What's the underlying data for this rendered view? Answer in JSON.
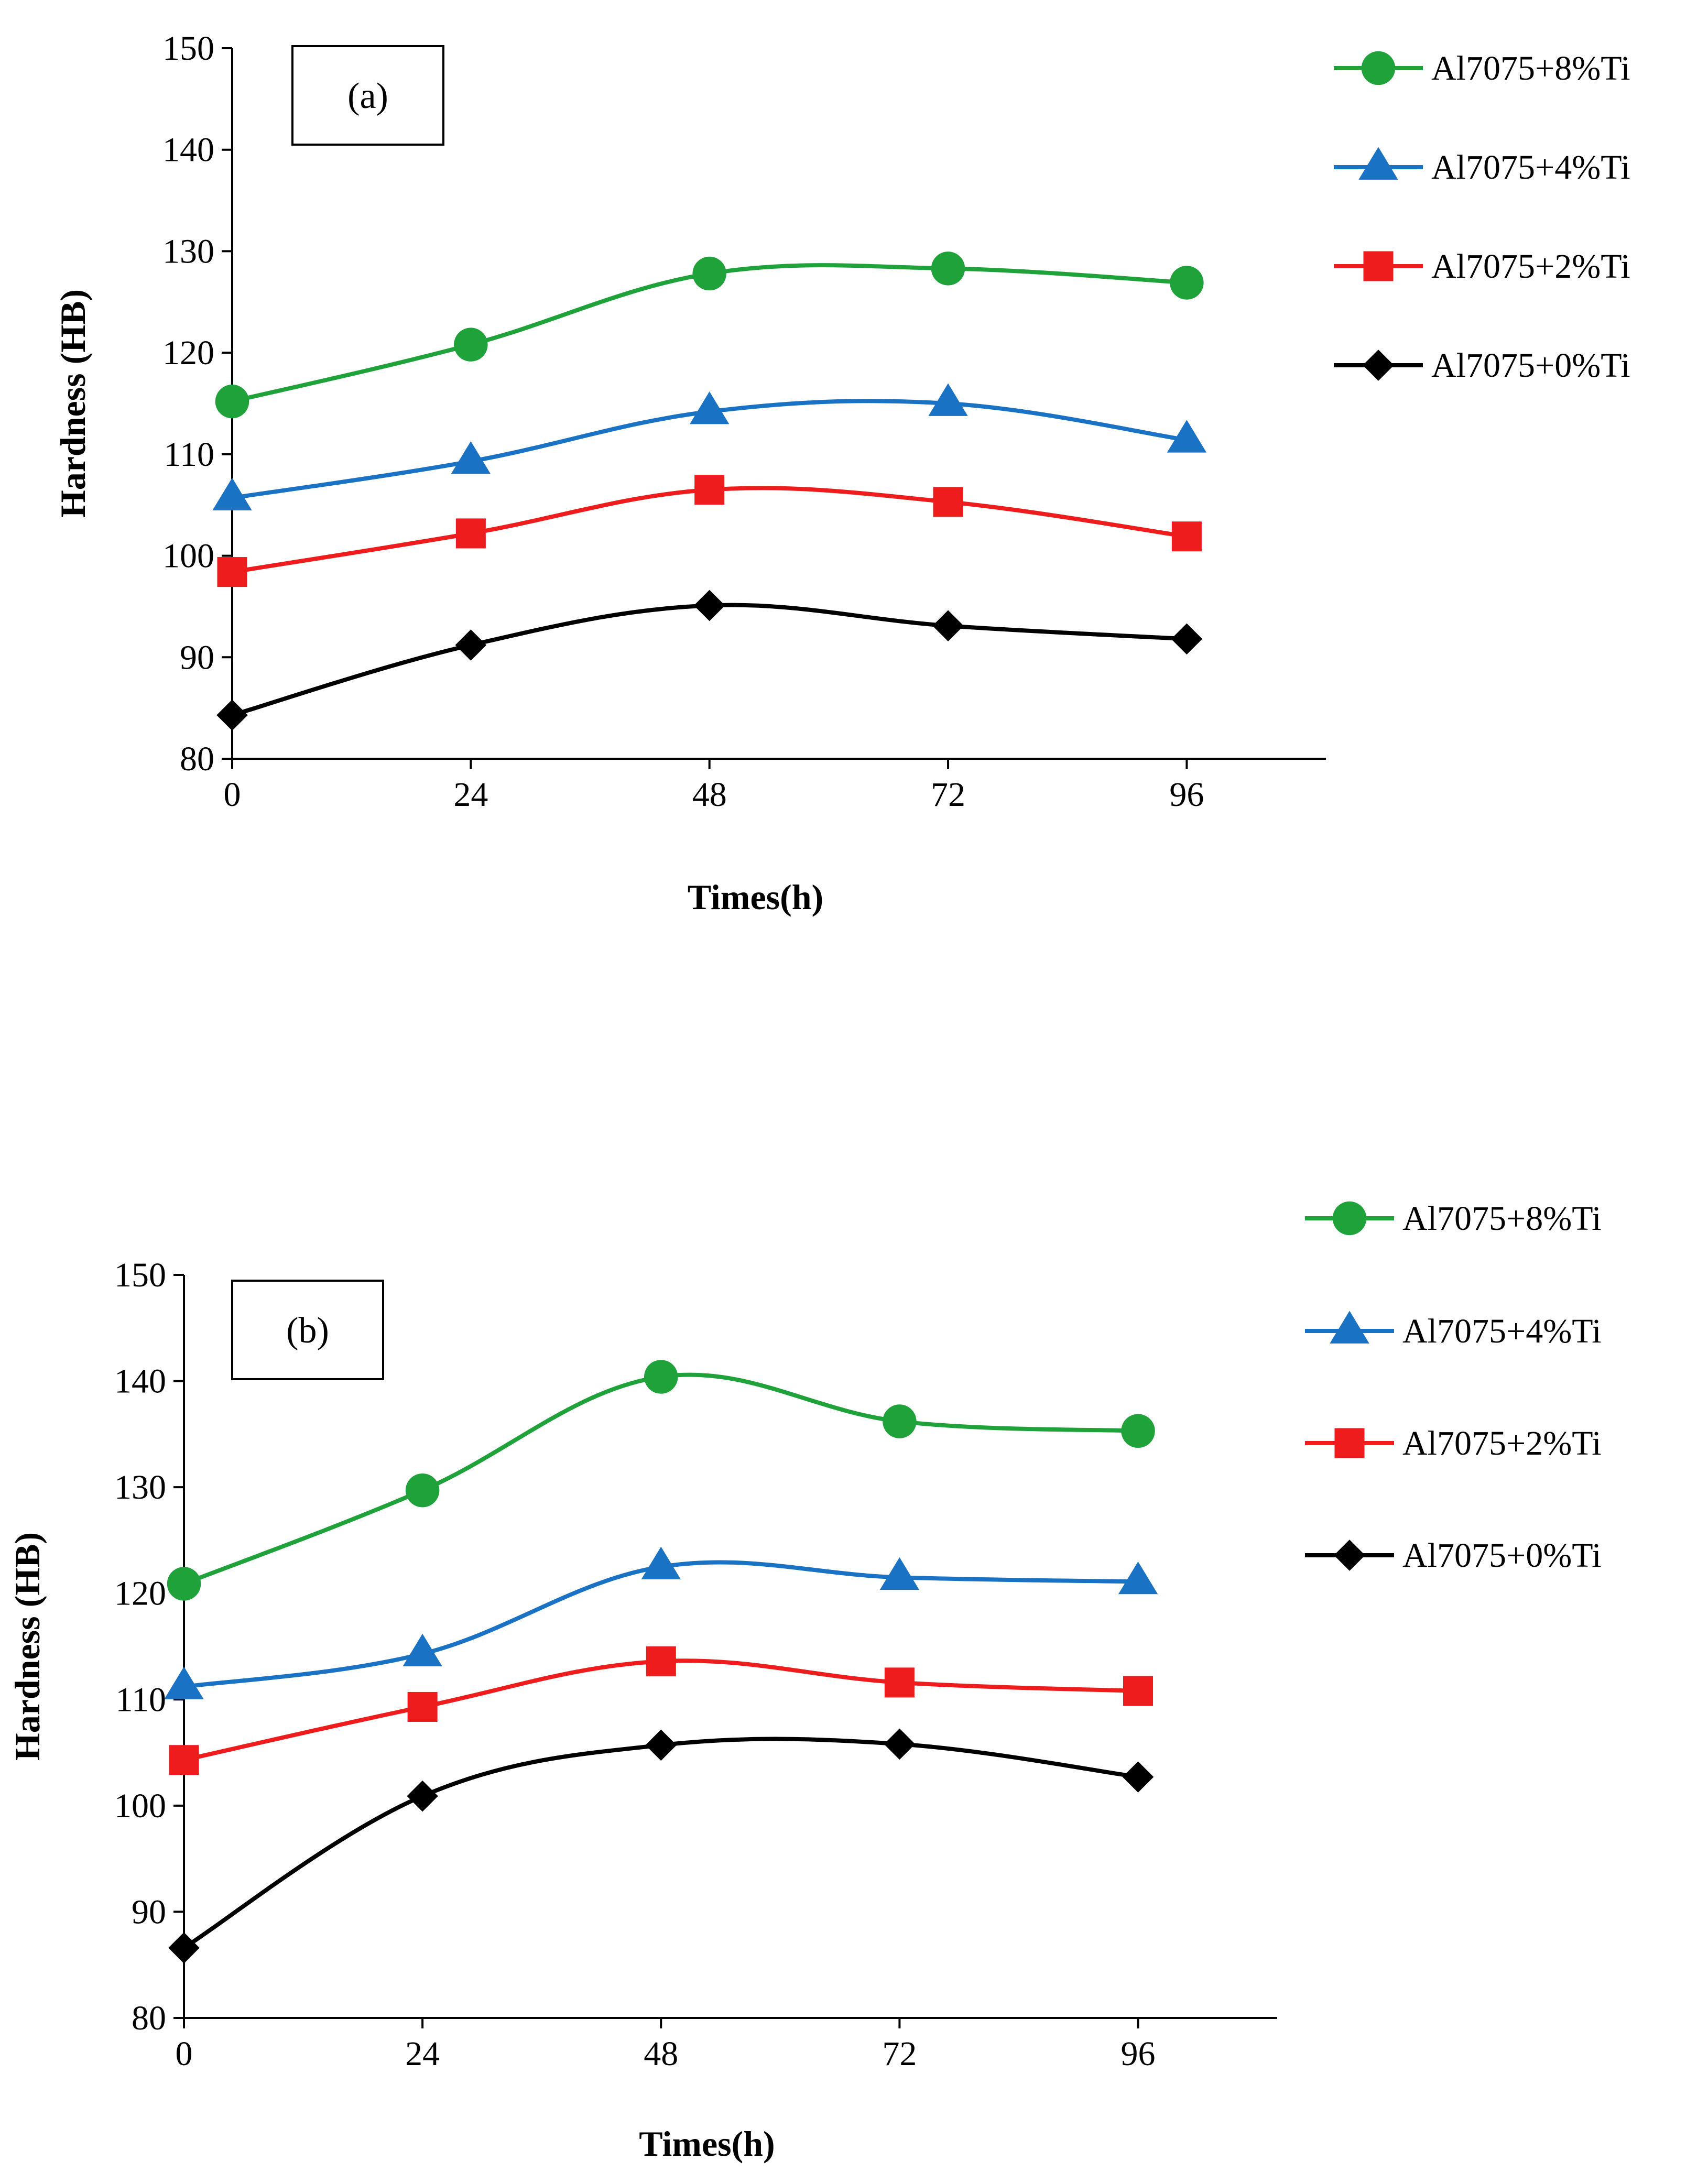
{
  "colors": {
    "series_8": "#1fa23a",
    "series_4": "#1a72c4",
    "series_2": "#ee1c1c",
    "series_0": "#000000"
  },
  "chart_data": [
    {
      "type": "line",
      "panel_label": "(a)",
      "title": "",
      "xlabel": "Times(h)",
      "ylabel": "Hardness (HB)",
      "x": [
        0,
        24,
        48,
        72,
        96
      ],
      "x_ticks": [
        "0",
        "24",
        "48",
        "72",
        "96"
      ],
      "y_ticks": [
        "80",
        "90",
        "100",
        "110",
        "120",
        "130",
        "140",
        "150"
      ],
      "xlim": [
        0,
        110
      ],
      "ylim": [
        80,
        150
      ],
      "grid": false,
      "legend_position": "right",
      "series": [
        {
          "name": "Al7075+8%Ti",
          "marker": "circle",
          "color": "#1fa23a",
          "values": [
            115.2,
            120.8,
            127.8,
            128.3,
            126.9
          ]
        },
        {
          "name": "Al7075+4%Ti",
          "marker": "triangle",
          "color": "#1a72c4",
          "values": [
            105.7,
            109.3,
            114.2,
            115.0,
            111.4
          ]
        },
        {
          "name": "Al7075+2%Ti",
          "marker": "square",
          "color": "#ee1c1c",
          "values": [
            98.4,
            102.2,
            106.5,
            105.3,
            101.9
          ]
        },
        {
          "name": "Al7075+0%Ti",
          "marker": "diamond",
          "color": "#000000",
          "values": [
            84.3,
            91.2,
            95.1,
            93.1,
            91.8
          ]
        }
      ]
    },
    {
      "type": "line",
      "panel_label": "(b)",
      "title": "",
      "xlabel": "Times(h)",
      "ylabel": "Hardness (HB)",
      "x": [
        0,
        24,
        48,
        72,
        96
      ],
      "x_ticks": [
        "0",
        "24",
        "48",
        "72",
        "96"
      ],
      "y_ticks": [
        "80",
        "90",
        "100",
        "110",
        "120",
        "130",
        "140",
        "150"
      ],
      "xlim": [
        0,
        110
      ],
      "ylim": [
        80,
        150
      ],
      "grid": false,
      "legend_position": "right",
      "series": [
        {
          "name": "Al7075+8%Ti",
          "marker": "circle",
          "color": "#1fa23a",
          "values": [
            120.9,
            129.7,
            140.4,
            136.2,
            135.3
          ]
        },
        {
          "name": "Al7075+4%Ti",
          "marker": "triangle",
          "color": "#1a72c4",
          "values": [
            111.2,
            114.3,
            122.5,
            121.5,
            121.1
          ]
        },
        {
          "name": "Al7075+2%Ti",
          "marker": "square",
          "color": "#ee1c1c",
          "values": [
            104.3,
            109.3,
            113.6,
            111.6,
            110.8
          ]
        },
        {
          "name": "Al7075+0%Ti",
          "marker": "diamond",
          "color": "#000000",
          "values": [
            86.6,
            100.9,
            105.7,
            105.8,
            102.7
          ]
        }
      ]
    }
  ]
}
